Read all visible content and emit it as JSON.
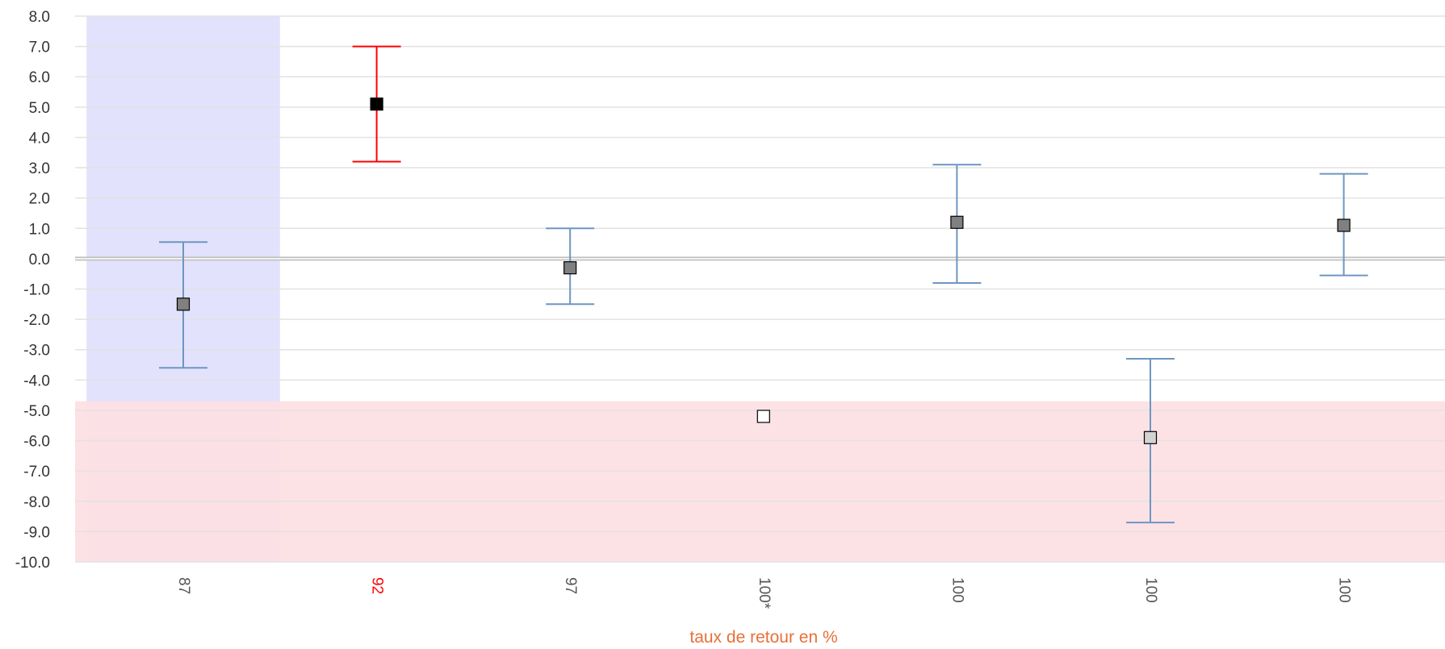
{
  "chart_data": {
    "type": "scatter",
    "xlabel": "taux de retour en %",
    "ylabel": "",
    "ylim": [
      -10,
      8
    ],
    "yticks": [
      8,
      7,
      6,
      5,
      4,
      3,
      2,
      1,
      0,
      -1,
      -2,
      -3,
      -4,
      -5,
      -6,
      -7,
      -8,
      -9,
      -10
    ],
    "grid": true,
    "reference_line": 0,
    "categories": [
      "87",
      "92",
      "97",
      "100*",
      "100",
      "100",
      "100"
    ],
    "category_label_colors": [
      "#555555",
      "#ff0000",
      "#555555",
      "#555555",
      "#555555",
      "#555555",
      "#555555"
    ],
    "points": [
      {
        "value": -1.5,
        "low": -3.6,
        "high": 0.55,
        "marker_color": "#808080",
        "errorbar_color": "#6d96c2"
      },
      {
        "value": 5.1,
        "low": 3.2,
        "high": 7.0,
        "marker_color": "#000000",
        "errorbar_color": "#ff0000"
      },
      {
        "value": -0.3,
        "low": -1.5,
        "high": 1.0,
        "marker_color": "#808080",
        "errorbar_color": "#6d96c2"
      },
      {
        "value": -5.2,
        "low": null,
        "high": null,
        "marker_color": "#ffffff",
        "errorbar_color": "#6d96c2"
      },
      {
        "value": 1.2,
        "low": -0.8,
        "high": 3.1,
        "marker_color": "#808080",
        "errorbar_color": "#6d96c2"
      },
      {
        "value": -5.9,
        "low": -8.7,
        "high": -3.3,
        "marker_color": "#d3d3d3",
        "errorbar_color": "#6d96c2"
      },
      {
        "value": 1.1,
        "low": -0.55,
        "high": 2.8,
        "marker_color": "#808080",
        "errorbar_color": "#6d96c2"
      }
    ],
    "bands": [
      {
        "name": "left-category-band",
        "category_start": 0,
        "category_end": 0,
        "y_from": -10,
        "y_to": 8,
        "color": "#e0e0fc"
      },
      {
        "name": "lower-value-band",
        "y_from": -10,
        "y_to": -4.7,
        "color": "#fde0e3"
      }
    ],
    "colors": {
      "xlabel": "#e8703a",
      "tick_text": "#333333",
      "gridline": "#e2e2e2",
      "zero_line": "#c0c0c0"
    }
  }
}
